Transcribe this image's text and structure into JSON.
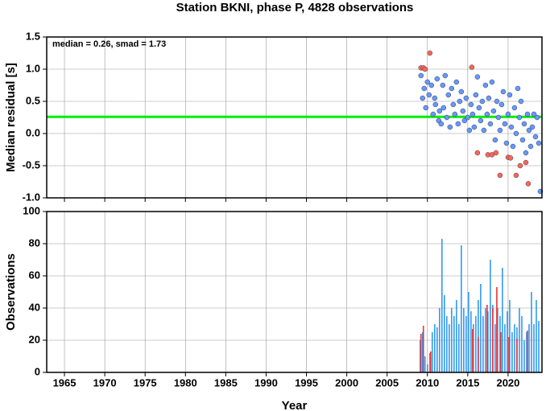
{
  "title": "Station BKNI, phase P, 4828 observations",
  "chart_data": [
    {
      "type": "scatter",
      "ylabel": "Median residual [s]",
      "annotation": "median = 0.26, smad = 1.73",
      "median": 0.26,
      "median_color": "#00ee00",
      "xlim": [
        1962.8,
        2024.2
      ],
      "ylim": [
        -1.0,
        1.5
      ],
      "yticks": [
        {
          "value": -1.0,
          "label": "-1.0"
        },
        -0.5,
        {
          "value": 0.0,
          "label": "0.0"
        },
        0.5,
        {
          "value": 1.0,
          "label": "1.0"
        },
        1.5
      ],
      "grid": true,
      "series": [
        {
          "color": "#6699ff",
          "x": [
            2009.2,
            2009.4,
            2009.6,
            2009.8,
            2010.0,
            2010.2,
            2010.5,
            2010.7,
            2010.9,
            2011.0,
            2011.2,
            2011.4,
            2011.5,
            2011.7,
            2011.9,
            2012.0,
            2012.2,
            2012.4,
            2012.6,
            2012.8,
            2013.0,
            2013.2,
            2013.4,
            2013.6,
            2013.8,
            2014.0,
            2014.2,
            2014.4,
            2014.6,
            2014.8,
            2015.0,
            2015.2,
            2015.4,
            2015.6,
            2015.8,
            2016.0,
            2016.2,
            2016.4,
            2016.6,
            2016.8,
            2017.0,
            2017.2,
            2017.4,
            2017.6,
            2017.8,
            2018.0,
            2018.2,
            2018.4,
            2018.6,
            2018.8,
            2019.0,
            2019.2,
            2019.4,
            2019.6,
            2019.8,
            2020.0,
            2020.2,
            2020.4,
            2020.6,
            2020.8,
            2021.0,
            2021.2,
            2021.4,
            2021.6,
            2021.8,
            2022.0,
            2022.2,
            2022.4,
            2022.6,
            2022.8,
            2023.0,
            2023.2,
            2023.4,
            2023.6,
            2023.8,
            2024.0
          ],
          "values": [
            0.9,
            0.55,
            0.7,
            0.4,
            0.8,
            0.6,
            0.75,
            0.3,
            0.55,
            0.45,
            0.85,
            0.2,
            0.35,
            0.15,
            0.75,
            0.4,
            0.9,
            0.25,
            0.6,
            0.1,
            0.7,
            0.45,
            0.3,
            0.8,
            0.15,
            0.5,
            0.65,
            0.35,
            0.2,
            0.55,
            0.25,
            0.05,
            0.45,
            0.3,
            0.1,
            0.6,
            0.88,
            0.4,
            0.2,
            0.5,
            0.05,
            0.75,
            0.3,
            0.55,
            0.15,
            0.8,
            0.35,
            -0.1,
            0.5,
            0.25,
            0.05,
            0.45,
            0.65,
            0.15,
            -0.15,
            0.3,
            0.6,
            0.1,
            -0.2,
            0.4,
            0.0,
            0.7,
            0.25,
            0.5,
            -0.1,
            0.15,
            -0.3,
            0.3,
            0.05,
            -0.2,
            0.1,
            0.3,
            -0.05,
            0.25,
            -0.15,
            -0.9
          ]
        },
        {
          "color": "#ff6655",
          "x": [
            2009.2,
            2009.5,
            2009.7,
            2010.3,
            2015.5,
            2016.2,
            2017.5,
            2018.0,
            2018.5,
            2019.0,
            2020.0,
            2020.3,
            2021.0,
            2021.5,
            2022.2,
            2022.5
          ],
          "values": [
            1.02,
            1.02,
            1.0,
            1.25,
            1.03,
            -0.3,
            -0.33,
            -0.33,
            -0.3,
            -0.65,
            -0.37,
            -0.38,
            -0.65,
            -0.5,
            -0.45,
            -0.78
          ]
        }
      ]
    },
    {
      "type": "bar",
      "ylabel": "Observations",
      "xlabel": "Year",
      "xlim": [
        1962.8,
        2024.2
      ],
      "ylim": [
        0,
        100
      ],
      "yticks": [
        0,
        20,
        40,
        60,
        80,
        100
      ],
      "xticks": [
        1965,
        1970,
        1975,
        1980,
        1985,
        1990,
        1995,
        2000,
        2005,
        2010,
        2015,
        2020
      ],
      "grid": true,
      "series": [
        {
          "color": "#3399ee",
          "x": [
            2009.1,
            2009.4,
            2009.7,
            2010.0,
            2010.3,
            2010.6,
            2010.9,
            2011.2,
            2011.5,
            2011.8,
            2012.1,
            2012.4,
            2012.7,
            2013.0,
            2013.3,
            2013.6,
            2013.9,
            2014.2,
            2014.5,
            2014.8,
            2015.1,
            2015.4,
            2015.7,
            2016.0,
            2016.3,
            2016.6,
            2016.9,
            2017.2,
            2017.5,
            2017.8,
            2018.1,
            2018.4,
            2018.7,
            2019.0,
            2019.3,
            2019.6,
            2019.9,
            2020.2,
            2020.5,
            2020.8,
            2021.1,
            2021.4,
            2021.7,
            2022.0,
            2022.3,
            2022.6,
            2022.9,
            2023.2,
            2023.5,
            2023.8
          ],
          "values": [
            20,
            25,
            10,
            5,
            12,
            25,
            30,
            28,
            40,
            83,
            48,
            35,
            30,
            40,
            35,
            45,
            30,
            79,
            40,
            35,
            50,
            38,
            30,
            35,
            45,
            55,
            35,
            40,
            38,
            70,
            42,
            30,
            40,
            35,
            65,
            30,
            38,
            45,
            25,
            30,
            28,
            40,
            35,
            20,
            25,
            30,
            50,
            30,
            45,
            32
          ]
        },
        {
          "color": "#ee3333",
          "x": [
            2009.2,
            2009.5,
            2010.4,
            2015.6,
            2016.3,
            2017.4,
            2018.1,
            2018.6,
            2019.1,
            2020.1,
            2021.1,
            2022.4
          ],
          "values": [
            24,
            29,
            13,
            27,
            22,
            42,
            40,
            53,
            25,
            22,
            21,
            26
          ]
        }
      ]
    }
  ]
}
